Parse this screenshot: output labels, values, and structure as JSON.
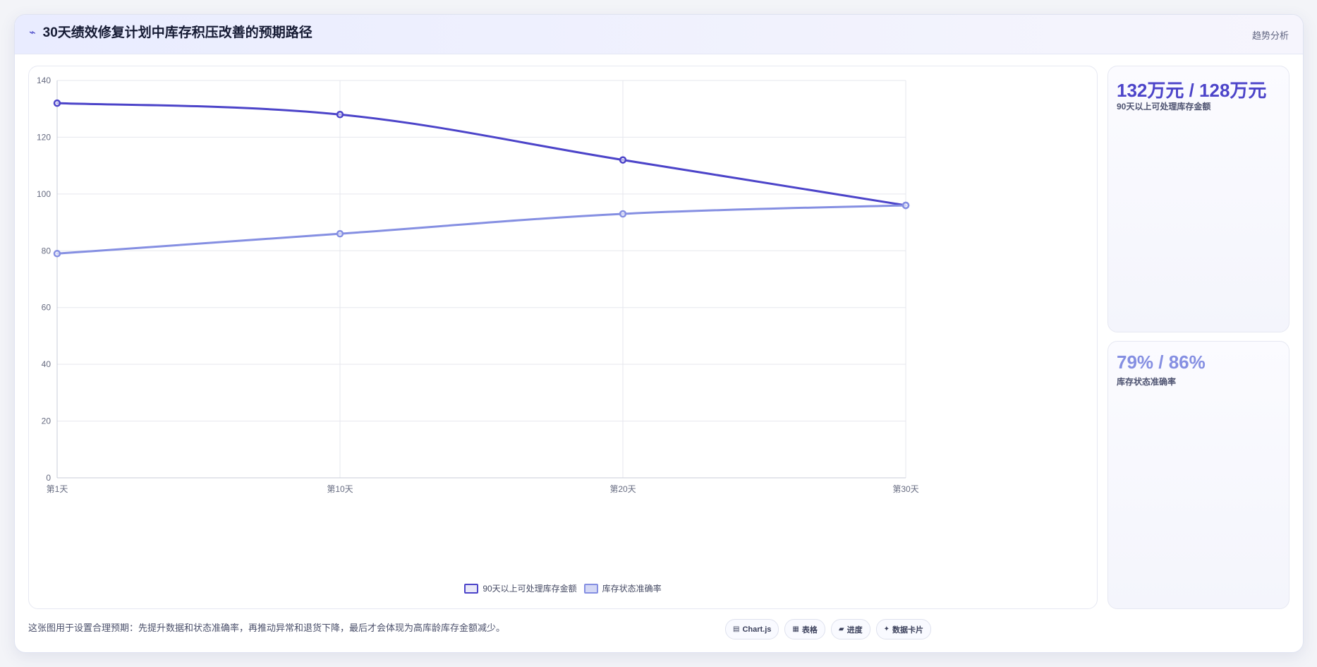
{
  "header": {
    "icon": "chart-line-icon",
    "title": "30天绩效修复计划中库存积压改善的预期路径",
    "tag": "趋势分析"
  },
  "colors": {
    "series1": "#4c44c9",
    "series2": "#858fe2",
    "grid": "#e6e7ee",
    "axis_text": "#666b80"
  },
  "kpis": [
    {
      "value": "132万元 / 128万元",
      "label": "90天以上可处理库存金额",
      "color": "#4c44c9"
    },
    {
      "value": "79% / 86%",
      "label": "库存状态准确率",
      "color": "#858fe2"
    }
  ],
  "footer": {
    "note": "这张图用于设置合理预期：先提升数据和状态准确率，再推动异常和退货下降，最后才会体现为高库龄库存金额减少。",
    "chips": [
      {
        "icon": "chart-icon",
        "label": "Chart.js"
      },
      {
        "icon": "table-icon",
        "label": "表格"
      },
      {
        "icon": "progress-icon",
        "label": "进度"
      },
      {
        "icon": "card-icon",
        "label": "数据卡片"
      }
    ]
  },
  "chart_data": {
    "type": "line",
    "categories": [
      "第1天",
      "第10天",
      "第20天",
      "第30天"
    ],
    "series": [
      {
        "name": "90天以上可处理库存金额",
        "values": [
          132,
          128,
          112,
          96
        ],
        "color": "#4c44c9"
      },
      {
        "name": "库存状态准确率",
        "values": [
          79,
          86,
          93,
          96
        ],
        "color": "#858fe2"
      }
    ],
    "ylim": [
      0,
      140
    ],
    "yticks": [
      0,
      20,
      40,
      60,
      80,
      100,
      120,
      140
    ],
    "grid": true,
    "legend": "bottom-center"
  }
}
